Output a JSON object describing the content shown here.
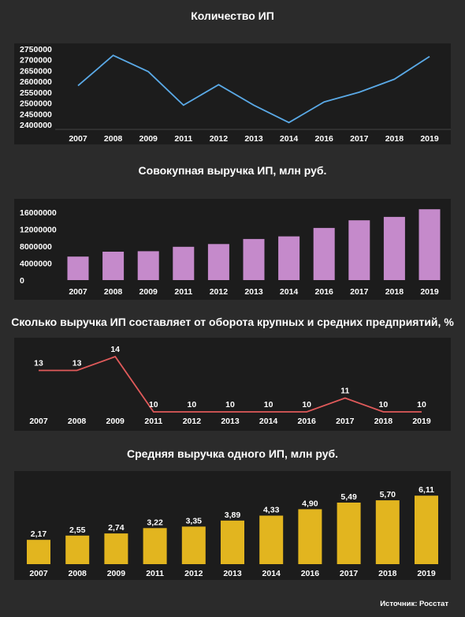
{
  "source": "Источник: Росстат",
  "colors": {
    "background": "#2b2b2b",
    "panel": "#1c1c1c",
    "line1": "#5aa9e6",
    "bar2": "#c58acb",
    "line3": "#e05a5a",
    "bar4": "#e2b51f"
  },
  "chart_data": [
    {
      "type": "line",
      "title": "Количество ИП",
      "categories": [
        "2007",
        "2008",
        "2009",
        "2011",
        "2012",
        "2013",
        "2014",
        "2016",
        "2017",
        "2018",
        "2019"
      ],
      "values": [
        2580000,
        2720000,
        2645000,
        2490000,
        2585000,
        2490000,
        2410000,
        2505000,
        2550000,
        2610000,
        2715000
      ],
      "yticks": [
        "2400000",
        "2450000",
        "2500000",
        "2550000",
        "2600000",
        "2650000",
        "2700000",
        "2750000"
      ],
      "ylim": [
        2400000,
        2750000
      ]
    },
    {
      "type": "bar",
      "title": "Совокупная выручка ИП, млн руб.",
      "categories": [
        "2007",
        "2008",
        "2009",
        "2011",
        "2012",
        "2013",
        "2014",
        "2016",
        "2017",
        "2018",
        "2019"
      ],
      "values": [
        5550000,
        6700000,
        6800000,
        7850000,
        8500000,
        9700000,
        10300000,
        12300000,
        14100000,
        14900000,
        16700000
      ],
      "yticks": [
        "0",
        "4000000",
        "8000000",
        "12000000",
        "16000000"
      ],
      "ylim": [
        0,
        16000000
      ]
    },
    {
      "type": "line",
      "title": "Сколько выручка ИП составляет от оборота крупных и средних предприятий, %",
      "categories": [
        "2007",
        "2008",
        "2009",
        "2011",
        "2012",
        "2013",
        "2014",
        "2016",
        "2017",
        "2018",
        "2019"
      ],
      "values": [
        13,
        13,
        14,
        10,
        10,
        10,
        10,
        10,
        11,
        10,
        10
      ],
      "labels": [
        "13",
        "13",
        "14",
        "10",
        "10",
        "10",
        "10",
        "10",
        "11",
        "10",
        "10"
      ],
      "ylim": [
        10,
        14
      ]
    },
    {
      "type": "bar",
      "title": "Средняя выручка одного ИП, млн руб.",
      "categories": [
        "2007",
        "2008",
        "2009",
        "2011",
        "2012",
        "2013",
        "2014",
        "2016",
        "2017",
        "2018",
        "2019"
      ],
      "values": [
        2.17,
        2.55,
        2.74,
        3.22,
        3.35,
        3.89,
        4.33,
        4.9,
        5.49,
        5.7,
        6.11
      ],
      "labels": [
        "2,17",
        "2,55",
        "2,74",
        "3,22",
        "3,35",
        "3,89",
        "4,33",
        "4,90",
        "5,49",
        "5,70",
        "6,11"
      ],
      "ylim": [
        0,
        6.11
      ]
    }
  ]
}
